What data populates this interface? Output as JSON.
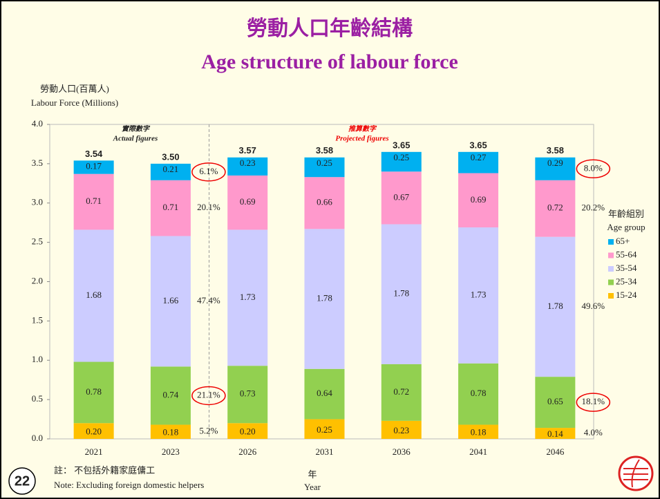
{
  "chart_data": {
    "type": "bar",
    "stacked": true,
    "title": "勞動人口年齡結構",
    "subtitle": "Age structure of labour force",
    "y_axis_label_zh": "勞動人口(百萬人)",
    "y_axis_label": "Labour Force (Millions)",
    "x_axis_label_zh": "年",
    "x_axis_label": "Year",
    "legend_title_zh": "年齡組別",
    "legend_title": "Age group",
    "actual_label_zh": "實際數字",
    "actual_label": "Actual figures",
    "projected_label_zh": "推算數字",
    "projected_label": "Projected figures",
    "note_zh": "註： 不包括外籍家庭傭工",
    "note": "Note: Excluding foreign domestic helpers",
    "page_number": "22",
    "categories": [
      "2021",
      "2023",
      "2026",
      "2031",
      "2036",
      "2041",
      "2046"
    ],
    "series": [
      {
        "name": "15-24",
        "color": "#ffc000",
        "values": [
          0.2,
          0.18,
          0.2,
          0.25,
          0.23,
          0.18,
          0.14
        ],
        "value_labels": [
          "0.20",
          "0.18",
          "0.20",
          "0.25",
          "0.23",
          "0.18",
          "0.14"
        ]
      },
      {
        "name": "25-34",
        "color": "#92d050",
        "values": [
          0.78,
          0.74,
          0.73,
          0.64,
          0.72,
          0.78,
          0.65
        ],
        "value_labels": [
          "0.78",
          "0.74",
          "0.73",
          "0.64",
          "0.72",
          "0.78",
          "0.65"
        ]
      },
      {
        "name": "35-54",
        "color": "#ccccff",
        "values": [
          1.68,
          1.66,
          1.73,
          1.78,
          1.78,
          1.73,
          1.78
        ],
        "value_labels": [
          "1.68",
          "1.66",
          "1.73",
          "1.78",
          "1.78",
          "1.73",
          "1.78"
        ]
      },
      {
        "name": "55-64",
        "color": "#ff99cc",
        "values": [
          0.71,
          0.71,
          0.69,
          0.66,
          0.67,
          0.69,
          0.72
        ],
        "value_labels": [
          "0.71",
          "0.71",
          "0.69",
          "0.66",
          "0.67",
          "0.69",
          "0.72"
        ]
      },
      {
        "name": "65+",
        "color": "#00b0f0",
        "values": [
          0.17,
          0.21,
          0.23,
          0.25,
          0.25,
          0.27,
          0.29
        ],
        "value_labels": [
          "0.17",
          "0.21",
          "0.23",
          "0.25",
          "0.25",
          "0.27",
          "0.29"
        ]
      }
    ],
    "totals": [
      3.54,
      3.5,
      3.57,
      3.58,
      3.65,
      3.65,
      3.58
    ],
    "total_labels": [
      "3.54",
      "3.50",
      "3.57",
      "3.58",
      "3.65",
      "3.65",
      "3.58"
    ],
    "shares": [
      {
        "category": "2023",
        "labels": [
          "5.2%",
          "21.1%",
          "47.4%",
          "20.1%",
          "6.1%"
        ],
        "circled": [
          false,
          true,
          false,
          false,
          true
        ]
      },
      {
        "category": "2046",
        "labels": [
          "4.0%",
          "18.1%",
          "49.6%",
          "20.2%",
          "8.0%"
        ],
        "circled": [
          false,
          true,
          false,
          false,
          true
        ]
      }
    ],
    "ylim": [
      0,
      4
    ],
    "yticks": [
      {
        "value": 0,
        "label": "0.0"
      },
      {
        "value": 0.5,
        "label": "0.5"
      },
      {
        "value": 1,
        "label": "1.0"
      },
      {
        "value": 1.5,
        "label": "1.5"
      },
      {
        "value": 2,
        "label": "2.0"
      },
      {
        "value": 2.5,
        "label": "2.5"
      },
      {
        "value": 3,
        "label": "3.0"
      },
      {
        "value": 3.5,
        "label": "3.5"
      },
      {
        "value": 4,
        "label": "4.0"
      }
    ],
    "grid": false
  }
}
